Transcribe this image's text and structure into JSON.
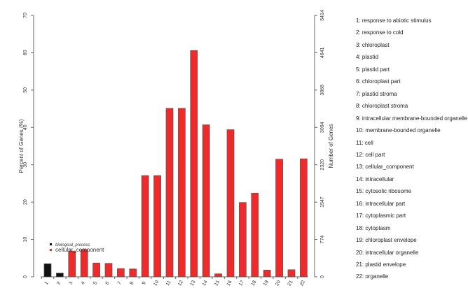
{
  "chart_data": {
    "type": "bar",
    "title": "",
    "xlabel": "",
    "ylabel": "Percent of Genes (%)",
    "y2label": "Number of Genes",
    "ylim": [
      0,
      70
    ],
    "yticks": [
      "0",
      "10",
      "20",
      "30",
      "40",
      "50",
      "60",
      "70"
    ],
    "y2ticks": [
      "0",
      "774",
      "1547",
      "2320",
      "3094",
      "3868",
      "4641",
      "5414"
    ],
    "categories": [
      "1",
      "2",
      "3",
      "4",
      "5",
      "6",
      "7",
      "8",
      "9",
      "10",
      "11",
      "12",
      "13",
      "14",
      "15",
      "16",
      "17",
      "18",
      "19",
      "20",
      "21",
      "22"
    ],
    "values": [
      3.5,
      1.0,
      6.9,
      7.3,
      3.7,
      3.6,
      2.2,
      2.1,
      27.1,
      27.1,
      45.1,
      45.1,
      60.6,
      40.7,
      0.8,
      39.4,
      19.9,
      22.4,
      1.8,
      31.5,
      1.9,
      31.6
    ],
    "groups": [
      "biological_process",
      "biological_process",
      "cellular_component",
      "cellular_component",
      "cellular_component",
      "cellular_component",
      "cellular_component",
      "cellular_component",
      "cellular_component",
      "cellular_component",
      "cellular_component",
      "cellular_component",
      "cellular_component",
      "cellular_component",
      "cellular_component",
      "cellular_component",
      "cellular_component",
      "cellular_component",
      "cellular_component",
      "cellular_component",
      "cellular_component",
      "cellular_component"
    ],
    "legend": [
      {
        "name": "biological_process",
        "color": "#111111"
      },
      {
        "name": "cellular_component",
        "color": "#ee2a2a"
      }
    ],
    "legend_placement": "bottom-left",
    "descriptions": [
      "1: response to abiotic stimulus",
      "2: response to cold",
      "3: chloroplast",
      "4: plastid",
      "5: plastid part",
      "6: chloroplast part",
      "7: plastid stroma",
      "8: chloroplast stroma",
      "9: intracellular membrane-bounded organelle",
      "10: membrane-bounded organelle",
      "11: cell",
      "12: cell part",
      "13: cellular_component",
      "14: intracellular",
      "15: cytosolic ribosome",
      "16: intracellular part",
      "17: cytoplasmic part",
      "18: cytoplasm",
      "19: chloroplast envelope",
      "20: intracellular organelle",
      "21: plastid envelope",
      "22: organelle"
    ]
  }
}
